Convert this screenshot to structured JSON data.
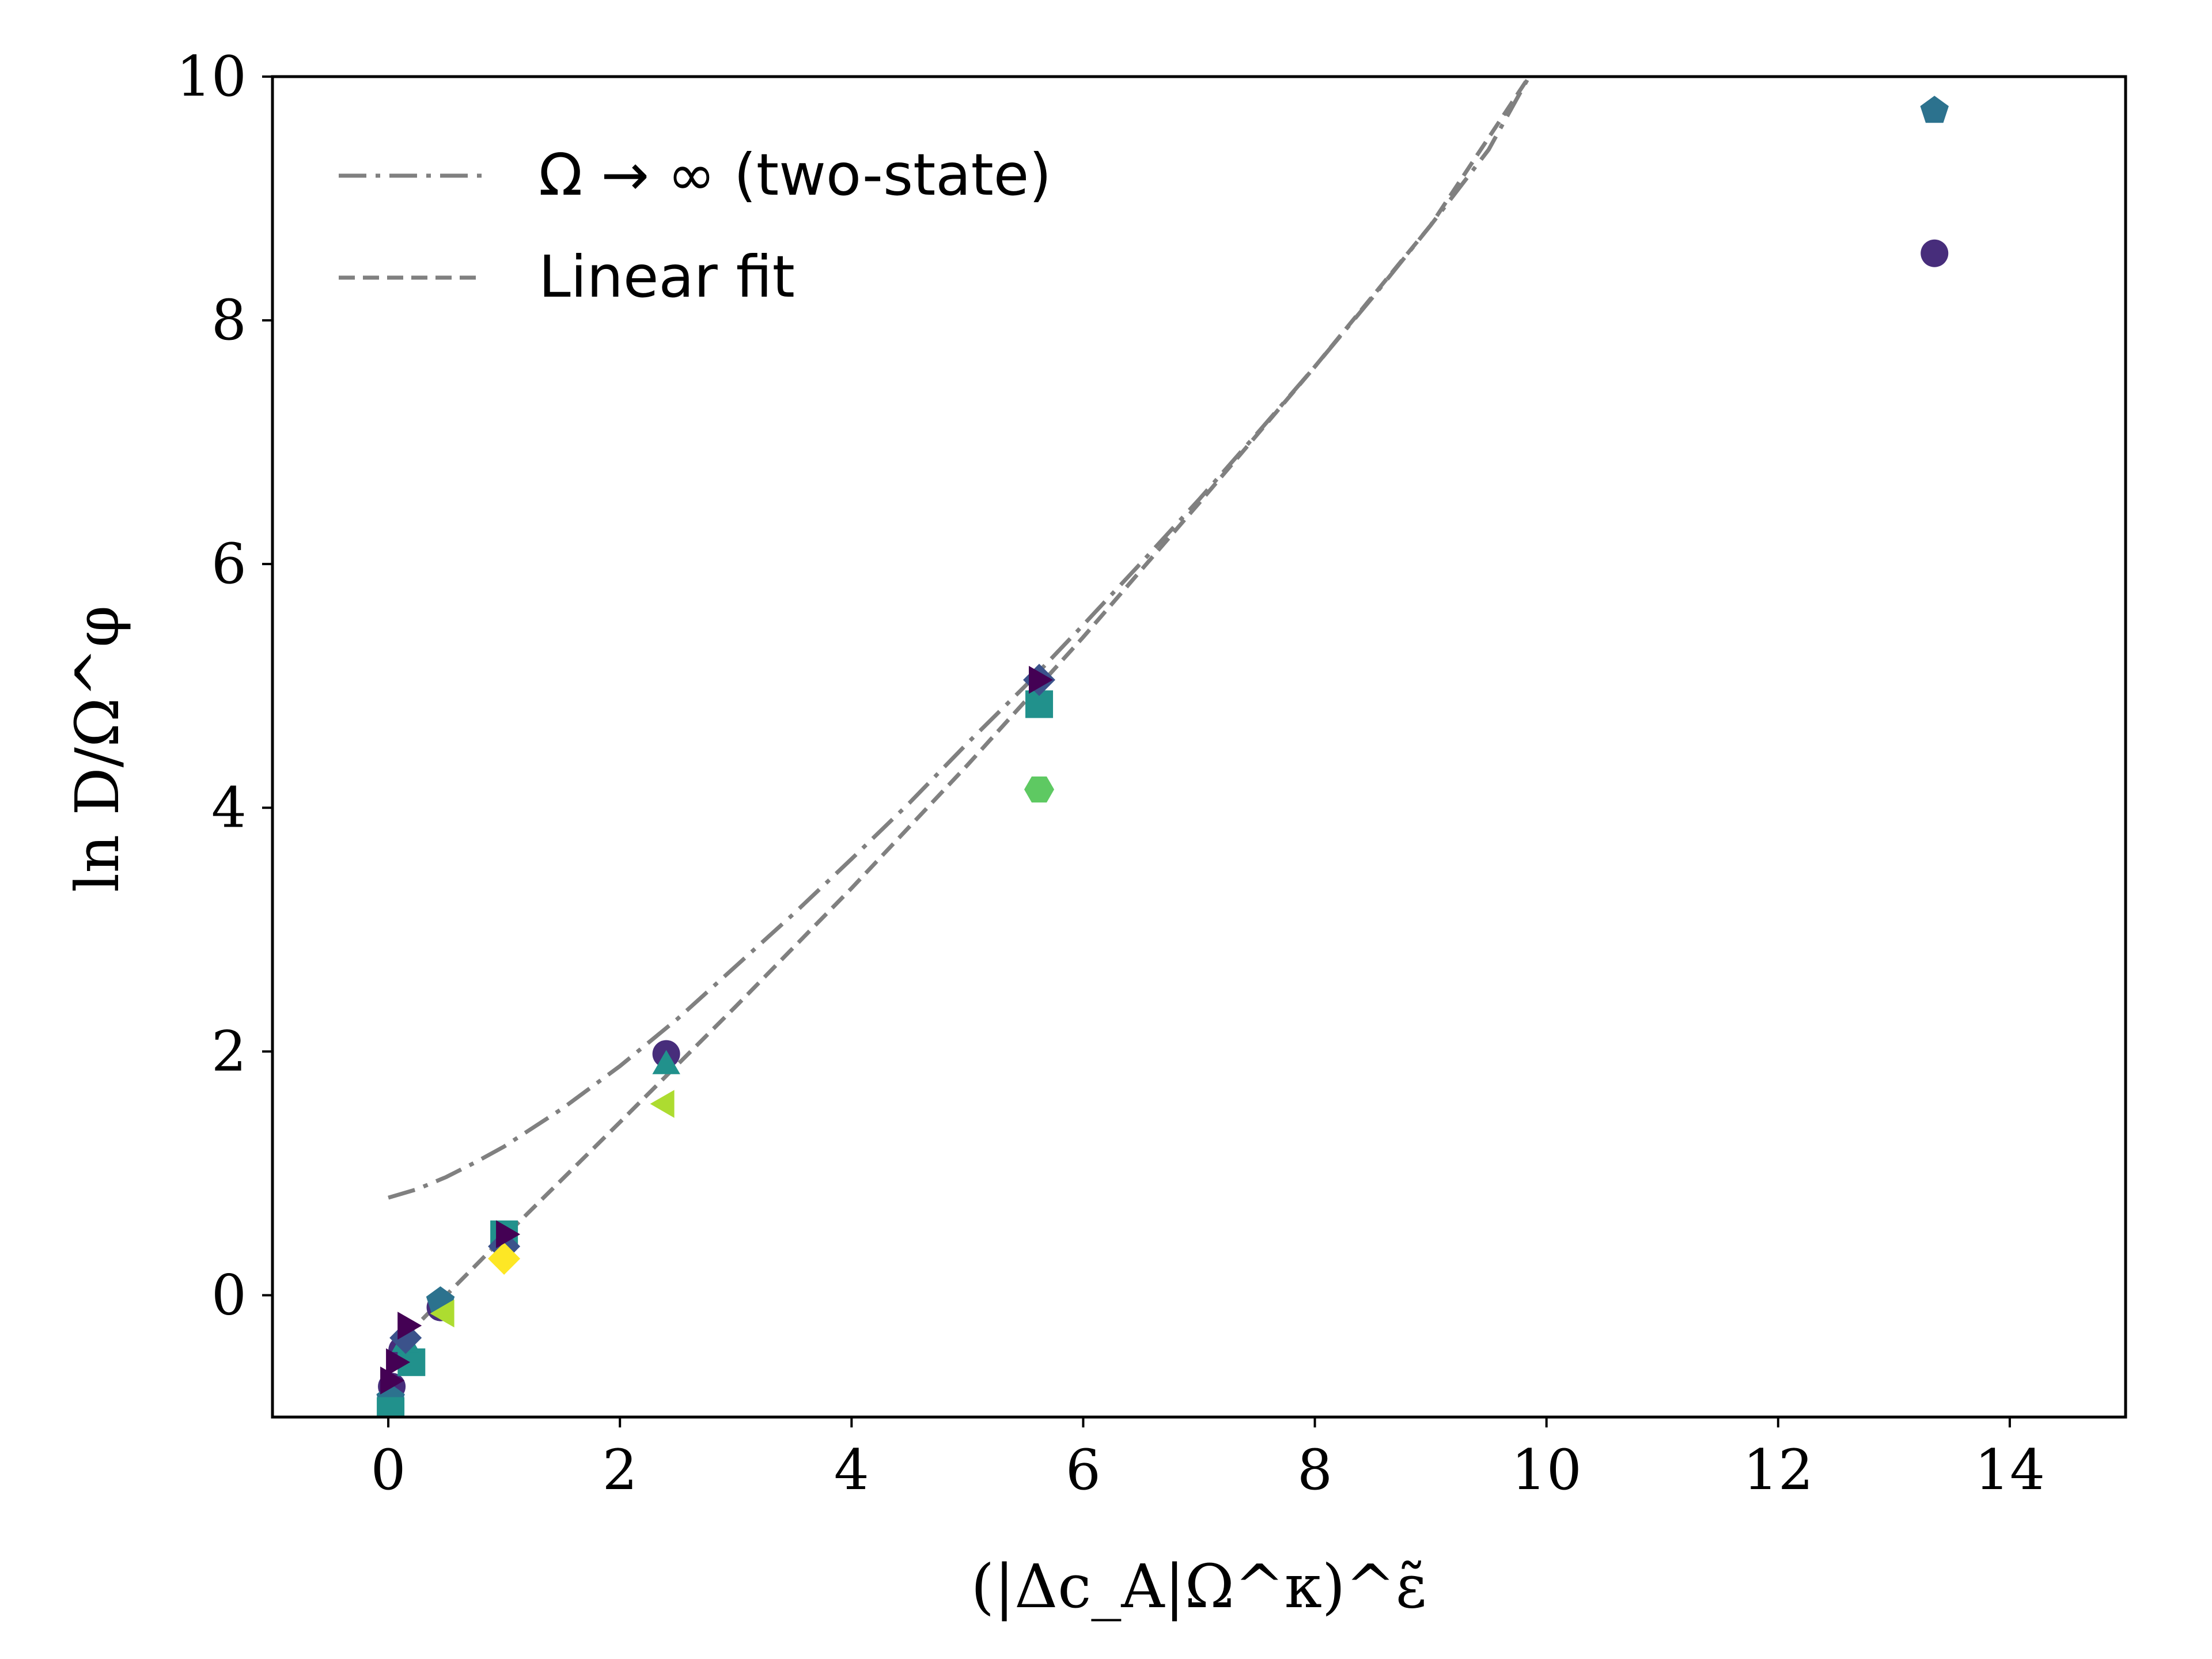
{
  "chart_data": {
    "type": "scatter",
    "title": "",
    "xlabel": "(|Δc_A|Ω^κ)^ε̃",
    "ylabel": "ln D/Ω^φ",
    "xlim": [
      -1,
      15
    ],
    "ylim": [
      -1,
      10
    ],
    "xticks": [
      0,
      2,
      4,
      6,
      8,
      10,
      12,
      14
    ],
    "yticks": [
      0,
      2,
      4,
      6,
      8,
      10
    ],
    "legend_position": "top-left",
    "colors": {
      "curve": "#808080",
      "dark_purple": "#440154",
      "purple": "#472d7b",
      "indigo": "#3b528b",
      "blue": "#2c728e",
      "teal": "#21918c",
      "green": "#5ec962",
      "lime": "#addc30",
      "yellow": "#fde725"
    },
    "curves": [
      {
        "name": "Ω → ∞ (two-state)",
        "style": "dashdot",
        "x": [
          0,
          0.25,
          0.5,
          0.75,
          1,
          1.5,
          2,
          2.5,
          3,
          3.5,
          4,
          4.5,
          5,
          5.5,
          6,
          6.5,
          7,
          7.5,
          8,
          8.5,
          9,
          9.5,
          9.85
        ],
        "y": [
          0.8,
          0.87,
          0.97,
          1.09,
          1.22,
          1.53,
          1.88,
          2.27,
          2.7,
          3.13,
          3.58,
          4.04,
          4.53,
          5.0,
          5.5,
          6.01,
          6.53,
          7.07,
          7.62,
          8.19,
          8.78,
          9.4,
          10.0
        ]
      },
      {
        "name": "Linear fit",
        "style": "dashed",
        "x": [
          0,
          1,
          2,
          3,
          4,
          5,
          6,
          7,
          8,
          9,
          9.85
        ],
        "y": [
          -0.48,
          0.48,
          1.42,
          2.37,
          3.34,
          4.35,
          5.4,
          6.5,
          7.62,
          8.78,
          10.0
        ]
      }
    ],
    "series": [
      {
        "name": "circle",
        "marker": "circle",
        "color": "#472d7b",
        "x": [
          13.35,
          2.4,
          0.45,
          0.03,
          0.12
        ],
        "y": [
          8.55,
          1.98,
          -0.1,
          -0.75,
          -0.45
        ]
      },
      {
        "name": "pentagon",
        "marker": "pentagon",
        "color": "#2c728e",
        "x": [
          13.35,
          0.45,
          0.02
        ],
        "y": [
          9.72,
          -0.05,
          -0.85
        ]
      },
      {
        "name": "square",
        "marker": "square",
        "color": "#21918c",
        "x": [
          5.62,
          1.0,
          0.2,
          0.02
        ],
        "y": [
          4.85,
          0.5,
          -0.55,
          -0.95
        ]
      },
      {
        "name": "hexagon",
        "marker": "hexagon",
        "color": "#5ec962",
        "x": [
          5.62
        ],
        "y": [
          4.15
        ]
      },
      {
        "name": "triangle-left",
        "marker": "triangle-left",
        "color": "#addc30",
        "x": [
          2.4,
          0.5
        ],
        "y": [
          1.57,
          -0.15
        ]
      },
      {
        "name": "triangle-up",
        "marker": "triangle-up",
        "color": "#21918c",
        "x": [
          2.4,
          0.15
        ],
        "y": [
          1.88,
          -0.4
        ]
      },
      {
        "name": "diamond",
        "marker": "diamond",
        "color": "#3b528b",
        "x": [
          5.62,
          1.0,
          0.15
        ],
        "y": [
          5.05,
          0.4,
          -0.35
        ]
      },
      {
        "name": "thin-diamond",
        "marker": "diamond",
        "color": "#fde725",
        "x": [
          1.0
        ],
        "y": [
          0.3
        ]
      },
      {
        "name": "triangle-right",
        "marker": "triangle-right",
        "color": "#440154",
        "x": [
          5.6,
          1.0,
          0.15,
          0.05,
          0.0
        ],
        "y": [
          5.05,
          0.5,
          -0.25,
          -0.55,
          -0.7
        ]
      }
    ]
  }
}
